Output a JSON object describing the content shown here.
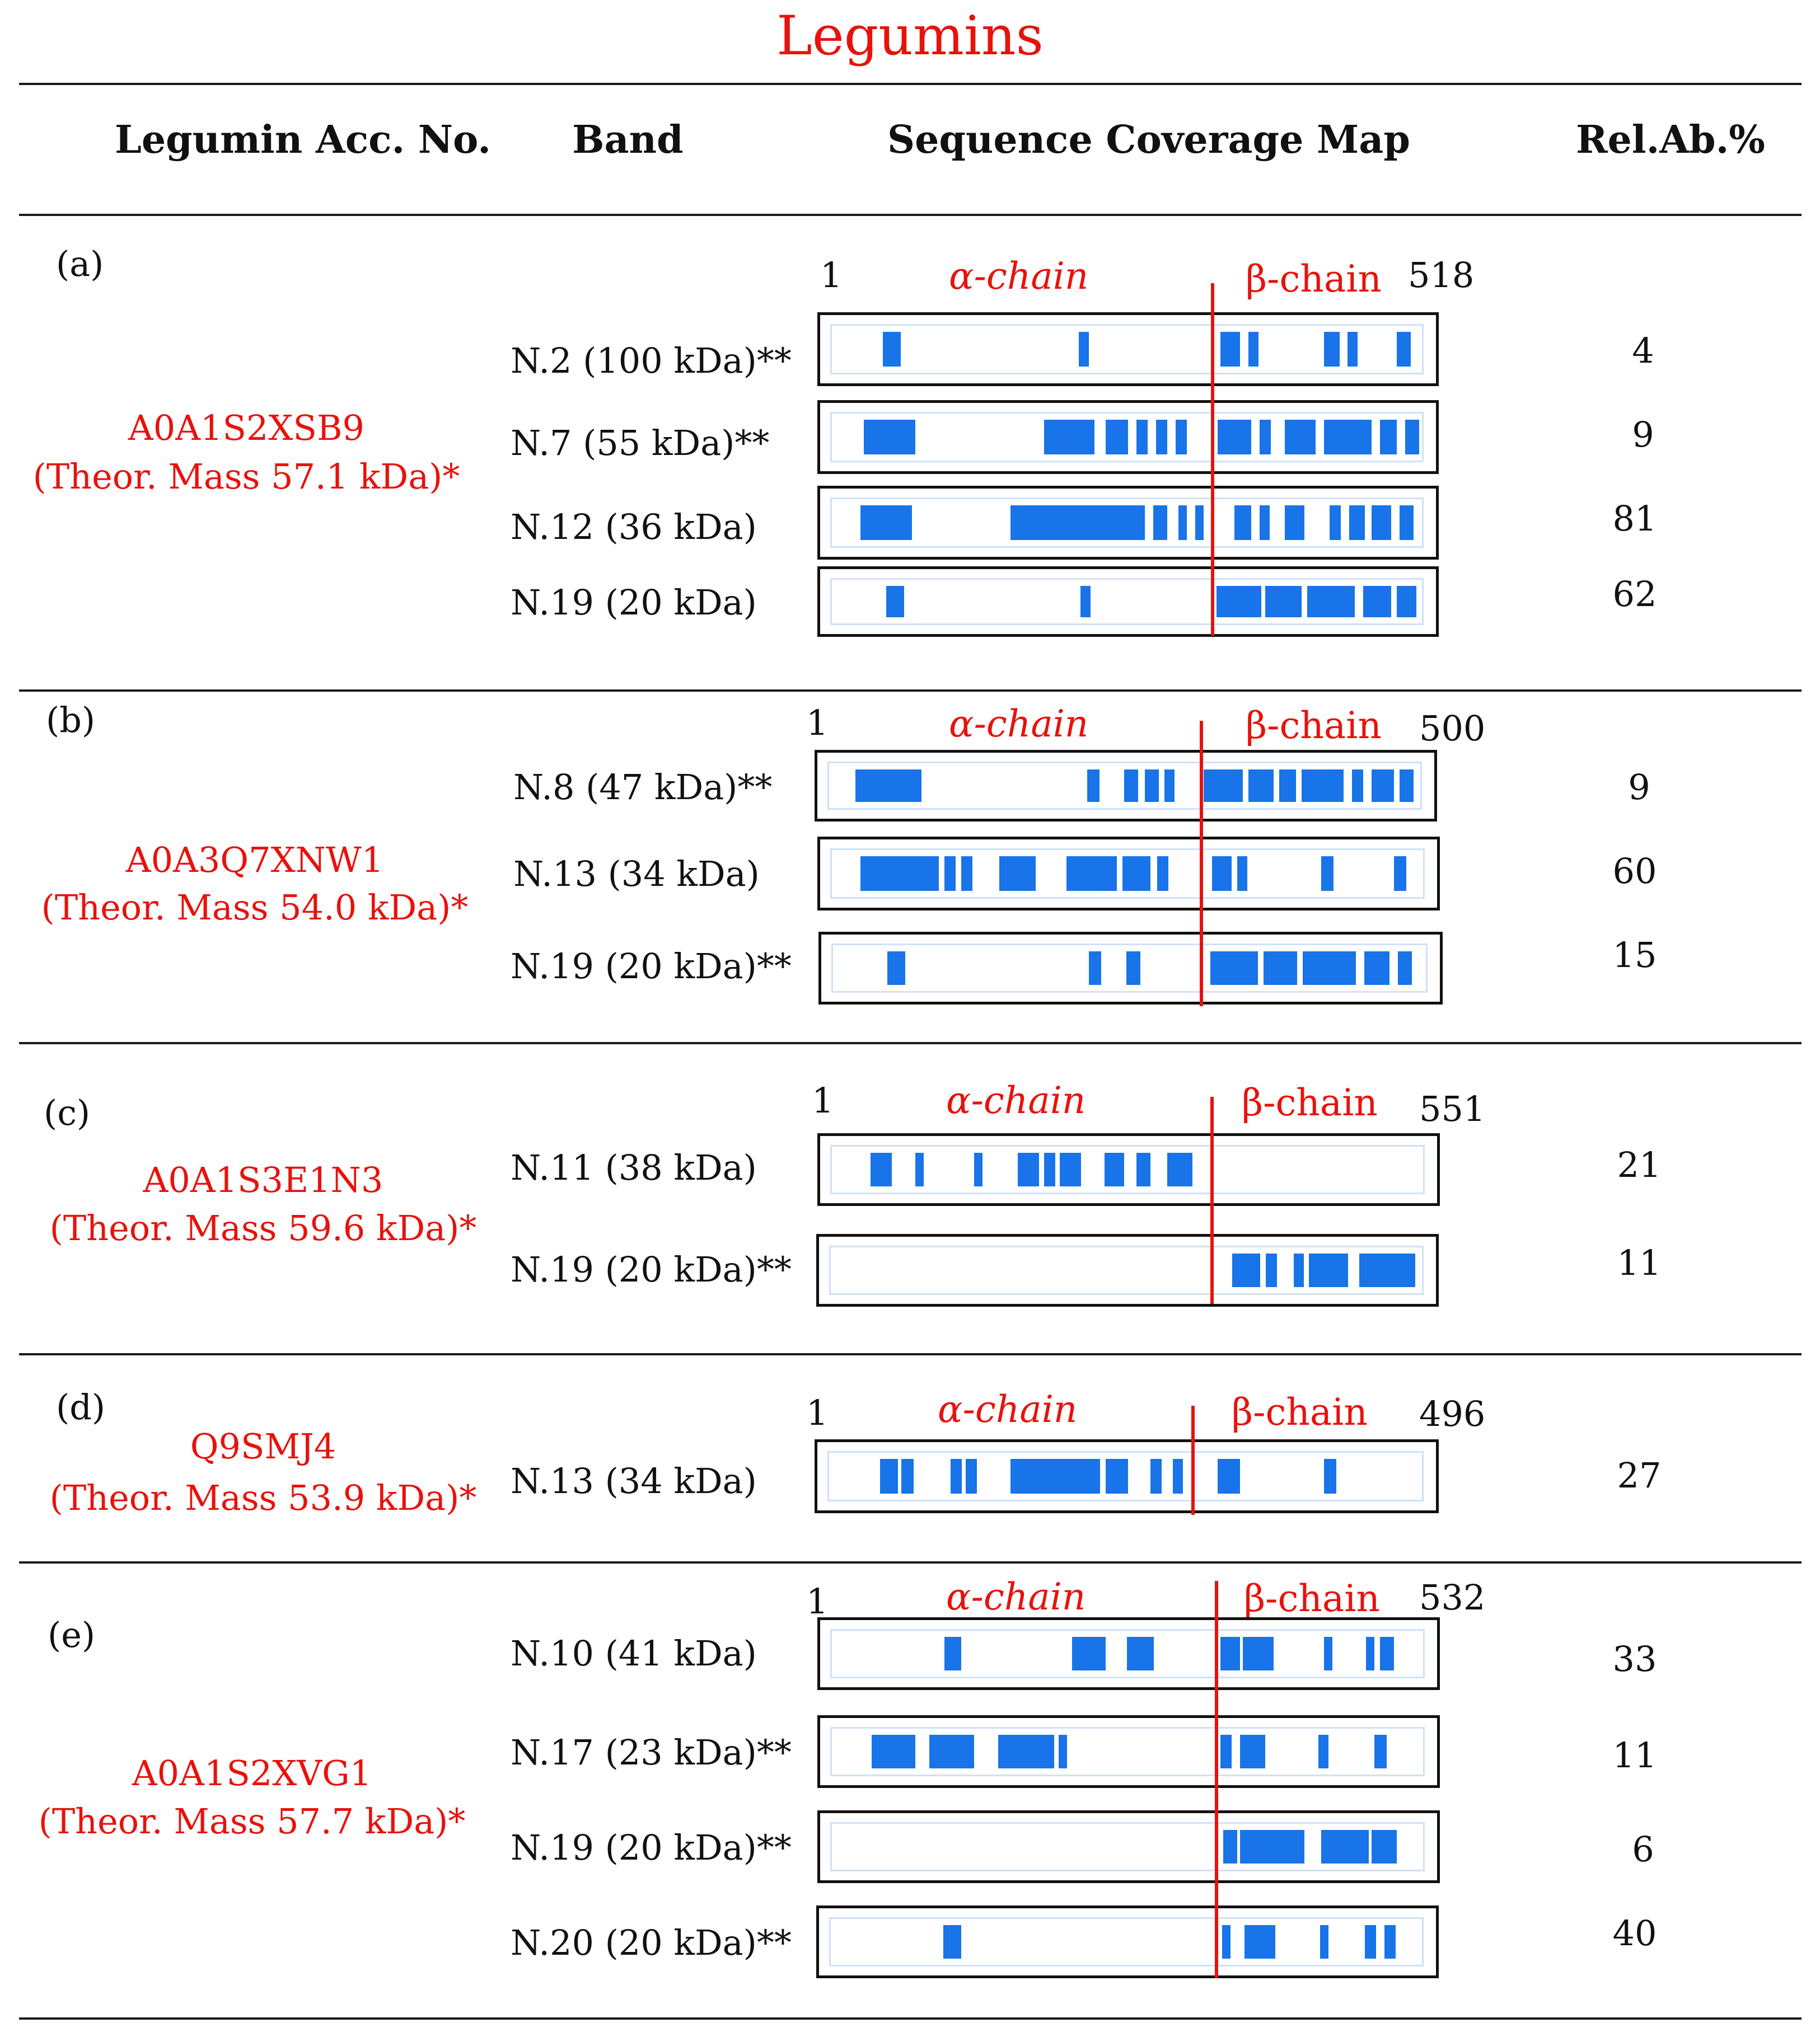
{
  "title": "Legumins",
  "headers": {
    "acc": "Legumin Acc. No.",
    "band": "Band",
    "map": "Sequence Coverage Map",
    "rel": "Rel.Ab.%"
  },
  "colors": {
    "accent": "#e8120c",
    "coverage": "#1874e8",
    "frame": "#cfe1f7"
  },
  "groups": [
    {
      "letter": "(a)",
      "accession": "A0A1S2XSB9",
      "mass": "(Theor. Mass 57.1 kDa)*",
      "start": "1",
      "end": "518",
      "alpha": "α-chain",
      "beta": "β-chain",
      "rows": [
        {
          "band": "N.2 (100 kDa)**",
          "rel": "4"
        },
        {
          "band": "N.7 (55 kDa)**",
          "rel": "9"
        },
        {
          "band": "N.12 (36 kDa)",
          "rel": "81"
        },
        {
          "band": "N.19 (20 kDa)",
          "rel": "62"
        }
      ]
    },
    {
      "letter": "(b)",
      "accession": "A0A3Q7XNW1",
      "mass": "(Theor. Mass 54.0 kDa)*",
      "start": "1",
      "end": "500",
      "alpha": "α-chain",
      "beta": "β-chain",
      "rows": [
        {
          "band": "N.8 (47 kDa)**",
          "rel": "9"
        },
        {
          "band": "N.13 (34 kDa)",
          "rel": "60"
        },
        {
          "band": "N.19 (20 kDa)**",
          "rel": "15"
        }
      ]
    },
    {
      "letter": "(c)",
      "accession": "A0A1S3E1N3",
      "mass": "(Theor. Mass 59.6 kDa)*",
      "start": "1",
      "end": "551",
      "alpha": "α-chain",
      "beta": "β-chain",
      "rows": [
        {
          "band": "N.11 (38 kDa)",
          "rel": "21"
        },
        {
          "band": "N.19 (20 kDa)**",
          "rel": "11"
        }
      ]
    },
    {
      "letter": "(d)",
      "accession": "Q9SMJ4",
      "mass": "(Theor. Mass 53.9 kDa)*",
      "start": "1",
      "end": "496",
      "alpha": "α-chain",
      "beta": "β-chain",
      "rows": [
        {
          "band": "N.13 (34 kDa)",
          "rel": "27"
        }
      ]
    },
    {
      "letter": "(e)",
      "accession": "A0A1S2XVG1",
      "mass": "(Theor. Mass 57.7 kDa)*",
      "start": "1",
      "end": "532",
      "alpha": "α-chain",
      "beta": "β-chain",
      "rows": [
        {
          "band": "N.10 (41 kDa)",
          "rel": "33"
        },
        {
          "band": "N.17 (23 kDa)**",
          "rel": "11"
        },
        {
          "band": "N.19 (20 kDa)**",
          "rel": "6"
        },
        {
          "band": "N.20 (20 kDa)**",
          "rel": "40"
        }
      ]
    }
  ]
}
